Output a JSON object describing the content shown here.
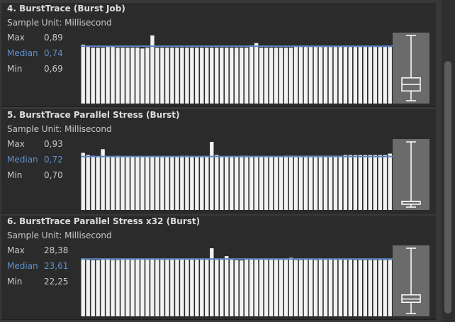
{
  "panels": [
    {
      "title": "4. BurstTrace (Burst Job)",
      "sample_unit": "Sample Unit: Millisecond",
      "stats": {
        "max_label": "Max",
        "max": "0,89",
        "median_label": "Median",
        "median": "0,74",
        "min_label": "Min",
        "min": "0,69"
      },
      "y_max": 0.89,
      "y_min": 0.69,
      "median_value": 0.74,
      "q1": 0.72,
      "q3": 0.76,
      "samples": [
        0.77,
        0.74,
        0.73,
        0.73,
        0.73,
        0.74,
        0.74,
        0.73,
        0.73,
        0.73,
        0.73,
        0.73,
        0.72,
        0.73,
        0.89,
        0.73,
        0.73,
        0.73,
        0.73,
        0.73,
        0.73,
        0.73,
        0.73,
        0.73,
        0.73,
        0.73,
        0.73,
        0.73,
        0.73,
        0.73,
        0.73,
        0.73,
        0.73,
        0.73,
        0.76,
        0.79,
        0.73,
        0.73,
        0.73,
        0.73,
        0.73,
        0.73,
        0.73,
        0.74,
        0.74,
        0.74,
        0.74,
        0.74,
        0.74,
        0.74,
        0.74,
        0.74,
        0.74,
        0.74,
        0.74,
        0.74,
        0.74,
        0.74,
        0.74,
        0.74,
        0.74,
        0.74,
        0.74
      ]
    },
    {
      "title": "5. BurstTrace Parallel Stress (Burst)",
      "sample_unit": "Sample Unit: Millisecond",
      "stats": {
        "max_label": "Max",
        "max": "0,93",
        "median_label": "Median",
        "median": "0,72",
        "min_label": "Min",
        "min": "0,70"
      },
      "y_max": 0.93,
      "y_min": 0.7,
      "median_value": 0.72,
      "q1": 0.71,
      "q3": 0.72,
      "samples": [
        0.78,
        0.75,
        0.74,
        0.73,
        0.83,
        0.73,
        0.73,
        0.74,
        0.73,
        0.73,
        0.73,
        0.73,
        0.73,
        0.73,
        0.73,
        0.73,
        0.73,
        0.73,
        0.73,
        0.73,
        0.74,
        0.74,
        0.73,
        0.73,
        0.73,
        0.73,
        0.93,
        0.75,
        0.73,
        0.73,
        0.73,
        0.73,
        0.74,
        0.74,
        0.73,
        0.73,
        0.73,
        0.73,
        0.73,
        0.73,
        0.73,
        0.74,
        0.74,
        0.74,
        0.74,
        0.74,
        0.74,
        0.74,
        0.74,
        0.74,
        0.74,
        0.74,
        0.74,
        0.75,
        0.75,
        0.75,
        0.75,
        0.75,
        0.75,
        0.75,
        0.75,
        0.75,
        0.77
      ]
    },
    {
      "title": "6. BurstTrace Parallel Stress x32 (Burst)",
      "sample_unit": "Sample Unit: Millisecond",
      "stats": {
        "max_label": "Max",
        "max": "28,38",
        "median_label": "Median",
        "median": "23,61",
        "min_label": "Min",
        "min": "22,25"
      },
      "y_max": 28.38,
      "y_min": 22.25,
      "median_value": 23.61,
      "q1": 23.3,
      "q3": 24.0,
      "samples": [
        24.1,
        23.5,
        23.4,
        23.4,
        23.9,
        24.1,
        23.5,
        23.5,
        23.8,
        24.0,
        23.6,
        24.0,
        23.9,
        23.6,
        23.7,
        23.6,
        23.6,
        23.6,
        23.6,
        23.7,
        24.0,
        23.6,
        23.6,
        23.6,
        23.6,
        23.6,
        28.38,
        23.6,
        23.6,
        25.1,
        23.6,
        23.4,
        23.3,
        23.6,
        23.6,
        23.6,
        23.6,
        23.6,
        23.6,
        23.6,
        23.6,
        23.6,
        24.4,
        23.5,
        23.5,
        23.6,
        23.6,
        23.5,
        23.6,
        23.6,
        23.6,
        23.6,
        23.6,
        23.6,
        23.6,
        23.5,
        23.5,
        23.5,
        23.5,
        23.5,
        23.5,
        23.5,
        23.5
      ]
    }
  ],
  "colors": {
    "bar": "#f2f2f2",
    "median_line": "#5b84c4",
    "box_bg": "#6b6b6b",
    "median_text": "#5f8fcd"
  }
}
